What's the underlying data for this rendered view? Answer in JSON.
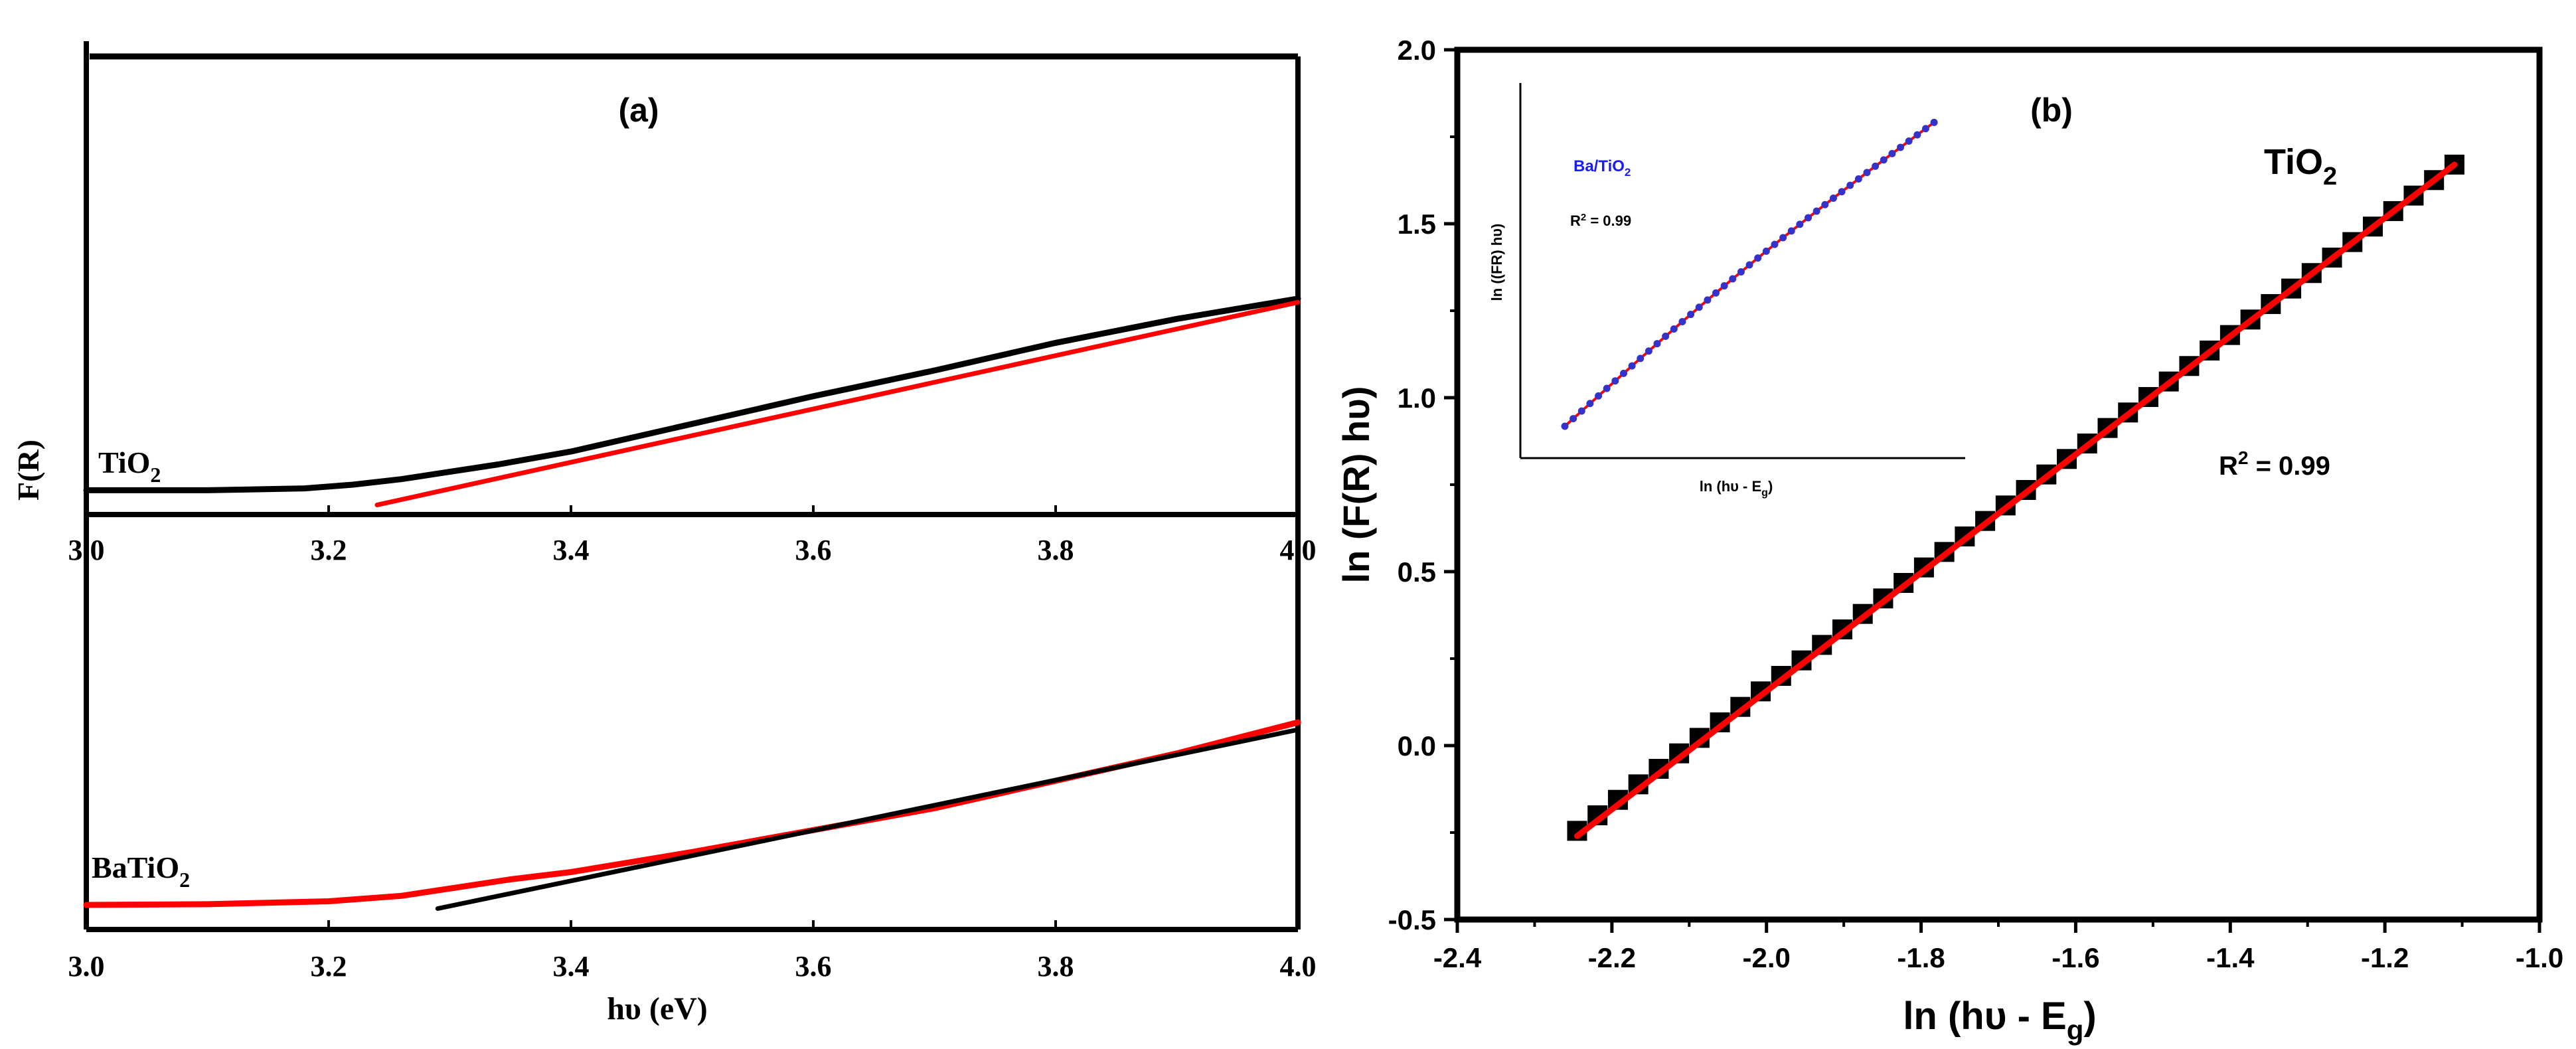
{
  "colors": {
    "fit": "#ff0000",
    "data": "#000000",
    "inset_points": "#3333cc",
    "inset_label": "#1a1aff"
  },
  "chart_data": [
    {
      "id": "a",
      "type": "line",
      "panel_label": "(a)",
      "ylabel": "F(R)",
      "xlabel": "hυ (eV)",
      "subplots": [
        {
          "label_text": "TiO",
          "label_sub": "2",
          "xlim": [
            3.0,
            4.0
          ],
          "ylim": [
            0,
            1
          ],
          "x_ticks": [
            3.0,
            3.2,
            3.4,
            3.6,
            3.8,
            4.0
          ],
          "x_tick_labels": [
            "3.0",
            "3.2",
            "3.4",
            "3.6",
            "3.8",
            "4.0"
          ],
          "series": [
            {
              "name": "TiO2 data",
              "color": "#000000",
              "x": [
                3.0,
                3.1,
                3.18,
                3.22,
                3.26,
                3.3,
                3.34,
                3.4,
                3.5,
                3.6,
                3.7,
                3.8,
                3.9,
                4.0
              ],
              "y": [
                0.03,
                0.03,
                0.035,
                0.045,
                0.06,
                0.08,
                0.1,
                0.135,
                0.21,
                0.285,
                0.355,
                0.43,
                0.495,
                0.55
              ]
            },
            {
              "name": "Tauc fit",
              "color": "#ff0000",
              "x": [
                3.24,
                4.0
              ],
              "y": [
                -0.01,
                0.54
              ]
            }
          ]
        },
        {
          "label_text": "BaTiO",
          "label_sub": "2",
          "xlim": [
            3.0,
            4.0
          ],
          "ylim": [
            0,
            1
          ],
          "x_ticks": [
            3.0,
            3.2,
            3.4,
            3.6,
            3.8,
            4.0
          ],
          "x_tick_labels": [
            "3.0",
            "3.2",
            "3.4",
            "3.6",
            "3.8",
            "4.0"
          ],
          "series": [
            {
              "name": "BaTiO2 data",
              "color": "#ff0000",
              "x": [
                3.0,
                3.1,
                3.2,
                3.26,
                3.3,
                3.35,
                3.4,
                3.5,
                3.6,
                3.7,
                3.8,
                3.9,
                4.0
              ],
              "y": [
                0.04,
                0.042,
                0.05,
                0.065,
                0.085,
                0.11,
                0.13,
                0.185,
                0.245,
                0.305,
                0.38,
                0.455,
                0.54
              ]
            },
            {
              "name": "Tauc fit",
              "color": "#000000",
              "x": [
                3.29,
                4.0
              ],
              "y": [
                0.03,
                0.52
              ]
            }
          ]
        }
      ]
    },
    {
      "id": "b",
      "type": "scatter",
      "panel_label": "(b)",
      "xlabel_main": "ln (hυ - E",
      "xlabel_sub": "g",
      "xlabel_end": ")",
      "ylabel": "ln (F(R) hυ)",
      "xlim": [
        -2.4,
        -1.0
      ],
      "ylim": [
        -0.5,
        2.0
      ],
      "x_ticks": [
        -2.4,
        -2.2,
        -2.0,
        -1.8,
        -1.6,
        -1.4,
        -1.2,
        -1.0
      ],
      "x_tick_labels": [
        "-2.4",
        "-2.2",
        "-2.0",
        "-1.8",
        "-1.6",
        "-1.4",
        "-1.2",
        "-1.0"
      ],
      "y_ticks": [
        -0.5,
        0.0,
        0.5,
        1.0,
        1.5,
        2.0
      ],
      "y_tick_labels": [
        "-0.5",
        "0.0",
        "0.5",
        "1.0",
        "1.5",
        "2.0"
      ],
      "series_label_text": "TiO",
      "series_label_sub": "2",
      "r2_text": "R",
      "r2_sup": "2",
      "r2_value": " = 0.99",
      "series": [
        {
          "name": "TiO2",
          "marker": "square",
          "color": "#000000",
          "x_start": -2.245,
          "x_end": -1.11,
          "n": 44,
          "y_start": -0.245,
          "y_end": 1.67
        },
        {
          "name": "Linear fit",
          "color": "#ff0000",
          "x": [
            -2.245,
            -1.11
          ],
          "y": [
            -0.26,
            1.67
          ]
        }
      ],
      "inset": {
        "legend_text": "Ba/TiO",
        "legend_sub": "2",
        "r2_text": "R",
        "r2_sup": "2",
        "r2_value": " = 0.99",
        "xlabel_main": "ln (hυ - E",
        "xlabel_sub": "g",
        "xlabel_end": ")",
        "ylabel": "ln ((FR) hυ)",
        "xlim": [
          0,
          1
        ],
        "ylim": [
          0,
          1
        ],
        "n_points": 45,
        "x_start": 0.1,
        "x_end": 0.93,
        "y_start": 0.085,
        "y_end": 0.895
      }
    }
  ]
}
